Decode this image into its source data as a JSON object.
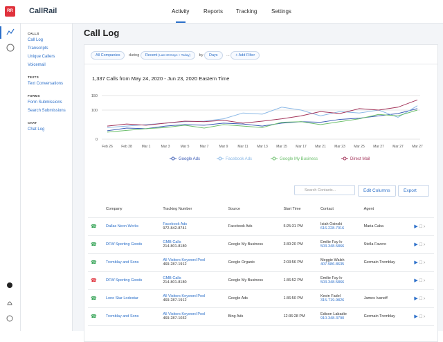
{
  "brand": {
    "badge": "RR",
    "name": "CallRail"
  },
  "nav": [
    "Activity",
    "Reports",
    "Tracking",
    "Settings"
  ],
  "sidebar": [
    {
      "heading": "CALLS",
      "links": [
        "Call Log",
        "Transcripts",
        "Unique Callers",
        "Voicemail"
      ]
    },
    {
      "heading": "TEXTS",
      "links": [
        "Text Conversations"
      ]
    },
    {
      "heading": "FORMS",
      "links": [
        "Form Submissions",
        "Search Submissions"
      ]
    },
    {
      "heading": "CHAT",
      "links": [
        "Chat Log"
      ]
    }
  ],
  "page_title": "Call Log",
  "filters": {
    "company": "All Companies",
    "during": "during",
    "range": "Recent",
    "range_note": "(Last 30 Days + Today)",
    "by": "by",
    "unit": "Days",
    "more": "...",
    "add": "+ Add Filter"
  },
  "chart_data": {
    "type": "line",
    "title": "1,337 Calls from May 24, 2020 - Jun 23, 2020 Eastern Time",
    "categories": [
      "Feb 26",
      "Feb 28",
      "Mar 1",
      "Mar 3",
      "Mar 5",
      "Mar 7",
      "Mar 9",
      "Mar 11",
      "Mar 13",
      "Mar 15",
      "Mar 17",
      "Mar 21",
      "Mar 23",
      "Mar 25",
      "Mar 27",
      "Mar 27",
      "Mar 27"
    ],
    "ylim": [
      0,
      150
    ],
    "yticks": [
      0,
      100,
      150
    ],
    "grid": true,
    "series": [
      {
        "name": "Google Ads",
        "color": "#3b5bb5",
        "values": [
          29,
          38,
          36,
          45,
          50,
          48,
          55,
          52,
          45,
          55,
          60,
          58,
          68,
          72,
          80,
          88,
          105
        ]
      },
      {
        "name": "Facebook Ads",
        "color": "#8ab8e6",
        "values": [
          40,
          45,
          50,
          55,
          60,
          62,
          70,
          90,
          86,
          110,
          100,
          80,
          95,
          90,
          100,
          75,
          115
        ]
      },
      {
        "name": "Google My Business",
        "color": "#6cbf6c",
        "values": [
          24,
          30,
          36,
          40,
          48,
          38,
          50,
          45,
          40,
          58,
          60,
          50,
          60,
          70,
          85,
          80,
          100
        ]
      },
      {
        "name": "Direct Mail",
        "color": "#a3345a",
        "values": [
          45,
          52,
          48,
          55,
          62,
          60,
          65,
          55,
          62,
          70,
          80,
          95,
          88,
          105,
          100,
          110,
          135
        ]
      }
    ]
  },
  "toolbar": {
    "search": "Search Contacts...",
    "edit": "Edit Columns",
    "export": "Export"
  },
  "table": {
    "columns": [
      "Company",
      "Tracking Number",
      "Source",
      "Start Time",
      "Contact",
      "Agent"
    ],
    "rows": [
      {
        "company": "Dallas Neon Works",
        "tracking": "Facebook Ads",
        "number": "972-842-8741",
        "source": "Facebook Ads",
        "time": "5:25:31 PM",
        "contact": "Isiah Osinski",
        "phone": "616-228-7016",
        "agent": "Maria Caba"
      },
      {
        "company": "DFW Sporting Goods",
        "tracking": "GMB Calls",
        "number": "214-801-8180",
        "source": "Google My Business",
        "time": "3:30:20 PM",
        "contact": "Emilie Fay Iv",
        "phone": "503-348-5866",
        "agent": "Stella Favero"
      },
      {
        "company": "Tremblay and Sons",
        "tracking": "All Visitors Keyword Pool",
        "number": "469-287-1912",
        "source": "Google Organic",
        "time": "2:03:56 PM",
        "contact": "Meggie Walsh",
        "phone": "407-586-8635",
        "agent": "Germain Tremblay"
      },
      {
        "company": "DFW Sporting Goods",
        "tracking": "GMB Calls",
        "number": "214-801-8180",
        "source": "Google My Business",
        "time": "1:36:52 PM",
        "contact": "Emilie Fay Iv",
        "phone": "503-348-5866"
      },
      {
        "company": "Lone Star Lodestar",
        "tracking": "All Visitors Keyword Pool",
        "number": "469-287-1912",
        "source": "Google Ads",
        "time": "1:36:50 PM",
        "contact": "Kevin Fadel",
        "phone": "315-719-9826",
        "agent": "James Ivanoff"
      },
      {
        "company": "Tremblay and Sons",
        "tracking": "All Visitors Keyword Pool",
        "number": "469-287-1032",
        "source": "Bing Ads",
        "time": "12:36:28 PM",
        "contact": "Edison Labadie",
        "phone": "910-348-3790",
        "agent": "Germain Tremblay"
      }
    ]
  }
}
